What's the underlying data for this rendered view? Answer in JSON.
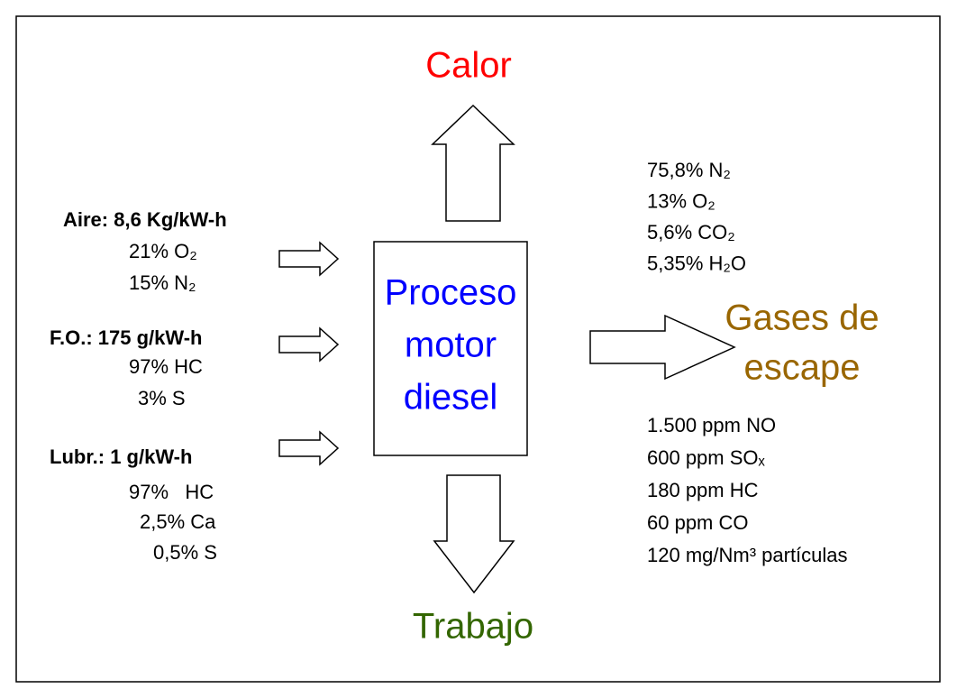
{
  "heat": "Calor",
  "work": "Trabajo",
  "process": [
    "Proceso",
    "motor",
    "diesel"
  ],
  "exhaust": [
    "Gases de",
    "escape"
  ],
  "inputs": [
    {
      "title": "Aire: 8,6 Kg/kW-h",
      "lines": [
        "21% O₂",
        "15% N₂"
      ]
    },
    {
      "title": "F.O.: 175 g/kW-h",
      "lines": [
        "97% HC",
        "3% S"
      ]
    },
    {
      "title": "Lubr.: 1 g/kW-h",
      "lines": [
        "97%   HC",
        "2,5% Ca",
        "0,5% S"
      ]
    }
  ],
  "exhaust_composition": [
    "75,8% N₂",
    "13% O₂",
    "5,6% CO₂",
    "5,35% H₂O"
  ],
  "exhaust_emissions": [
    "1.500 ppm NO",
    "600 ppm SOₓ",
    "180 ppm HC",
    "60 ppm CO",
    "120 mg/Nm³ partículas"
  ]
}
